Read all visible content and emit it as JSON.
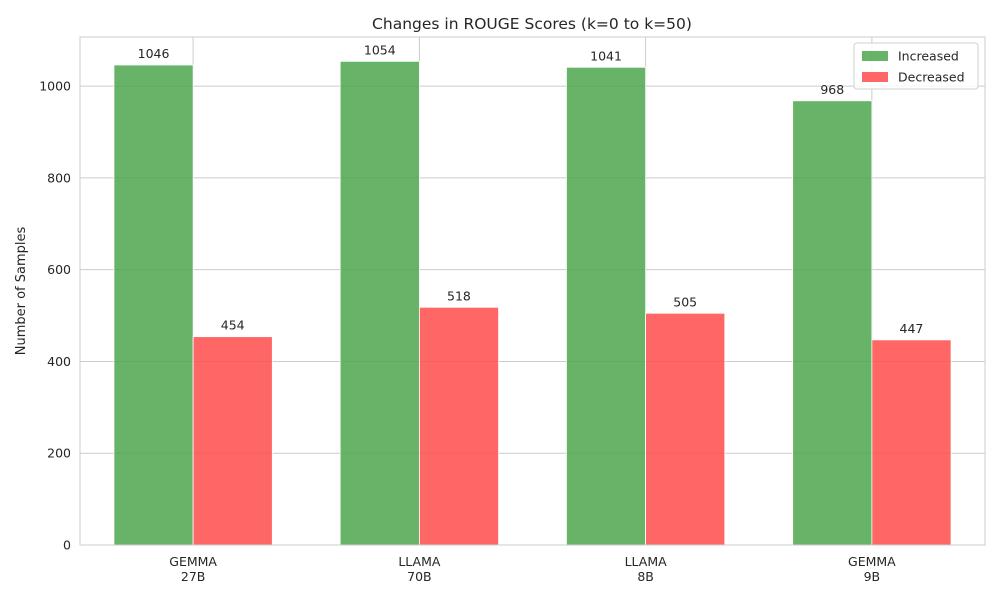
{
  "chart_data": {
    "type": "bar",
    "title": "Changes in ROUGE Scores (k=0 to k=50)",
    "xlabel": "",
    "ylabel": "Number of Samples",
    "categories": [
      [
        "GEMMA",
        "27B"
      ],
      [
        "LLAMA",
        "70B"
      ],
      [
        "LLAMA",
        "8B"
      ],
      [
        "GEMMA",
        "9B"
      ]
    ],
    "series": [
      {
        "name": "Increased",
        "values": [
          1046,
          1054,
          1041,
          968
        ],
        "color": "#4ca64c"
      },
      {
        "name": "Decreased",
        "values": [
          454,
          518,
          505,
          447
        ],
        "color": "#ff4c4c"
      }
    ],
    "ylim": [
      0,
      1107
    ],
    "yticks": [
      0,
      200,
      400,
      600,
      800,
      1000
    ],
    "grid": true,
    "legend_position": "top-right",
    "data_labels": true
  }
}
